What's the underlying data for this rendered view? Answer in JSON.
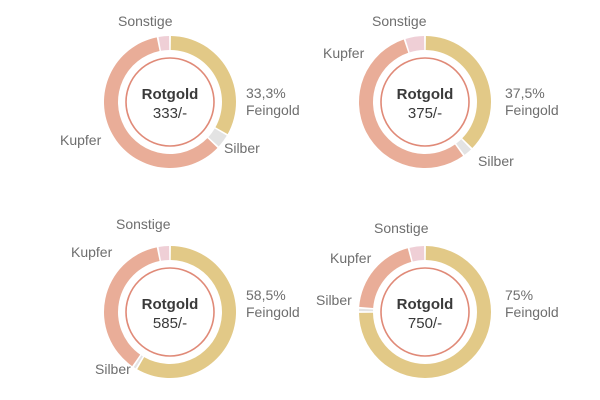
{
  "colors": {
    "Feingold": "#e2c987",
    "Silber": "#e3e3e3",
    "Kupfer": "#e9ad98",
    "Sonstige": "#efcfd6",
    "inner_ring": "#e08a78"
  },
  "chart_data": [
    {
      "type": "pie",
      "variant": "donut",
      "center_title": "Rotgold",
      "center_value": "333/-",
      "slices": [
        {
          "name": "Feingold",
          "value": 33.3,
          "label_lines": [
            "33,3%",
            "Feingold"
          ]
        },
        {
          "name": "Silber",
          "value": 3.7,
          "label_lines": [
            "Silber"
          ]
        },
        {
          "name": "Kupfer",
          "value": 60.0,
          "label_lines": [
            "Kupfer"
          ]
        },
        {
          "name": "Sonstige",
          "value": 3.0,
          "label_lines": [
            "Sonstige"
          ]
        }
      ]
    },
    {
      "type": "pie",
      "variant": "donut",
      "center_title": "Rotgold",
      "center_value": "375/-",
      "slices": [
        {
          "name": "Feingold",
          "value": 37.5,
          "label_lines": [
            "37,5%",
            "Feingold"
          ]
        },
        {
          "name": "Silber",
          "value": 2.5,
          "label_lines": [
            "Silber"
          ]
        },
        {
          "name": "Kupfer",
          "value": 55.0,
          "label_lines": [
            "Kupfer"
          ]
        },
        {
          "name": "Sonstige",
          "value": 5.0,
          "label_lines": [
            "Sonstige"
          ]
        }
      ]
    },
    {
      "type": "pie",
      "variant": "donut",
      "center_title": "Rotgold",
      "center_value": "585/-",
      "slices": [
        {
          "name": "Feingold",
          "value": 58.5,
          "label_lines": [
            "58,5%",
            "Feingold"
          ]
        },
        {
          "name": "Silber",
          "value": 1.0,
          "label_lines": [
            "Silber"
          ]
        },
        {
          "name": "Kupfer",
          "value": 37.5,
          "label_lines": [
            "Kupfer"
          ]
        },
        {
          "name": "Sonstige",
          "value": 3.0,
          "label_lines": [
            "Sonstige"
          ]
        }
      ]
    },
    {
      "type": "pie",
      "variant": "donut",
      "center_title": "Rotgold",
      "center_value": "750/-",
      "slices": [
        {
          "name": "Feingold",
          "value": 75.0,
          "label_lines": [
            "75%",
            "Feingold"
          ]
        },
        {
          "name": "Silber",
          "value": 1.0,
          "label_lines": [
            "Silber"
          ]
        },
        {
          "name": "Kupfer",
          "value": 20.0,
          "label_lines": [
            "Kupfer"
          ]
        },
        {
          "name": "Sonstige",
          "value": 4.0,
          "label_lines": [
            "Sonstige"
          ]
        }
      ]
    }
  ]
}
